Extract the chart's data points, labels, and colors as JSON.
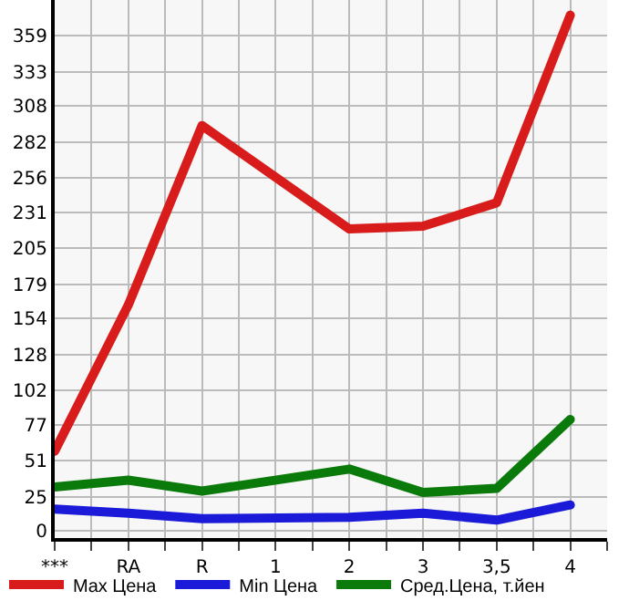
{
  "chart_data": {
    "type": "line",
    "categories": [
      "***",
      "RA",
      "R",
      "1",
      "2",
      "3",
      "3,5",
      "4"
    ],
    "series": [
      {
        "name": "Max Цена",
        "color": "#d81c1c",
        "values": [
          58,
          164,
          294,
          null,
          219,
          221,
          238,
          374
        ]
      },
      {
        "name": "Min Цена",
        "color": "#1a1ad8",
        "values": [
          16,
          13,
          9,
          null,
          10,
          13,
          8,
          19
        ]
      },
      {
        "name": "Сред.Цена, т.йен",
        "color": "#0a7a0a",
        "values": [
          32,
          37,
          29,
          null,
          45,
          28,
          31,
          81
        ]
      }
    ],
    "ylim": [
      -5,
      385
    ],
    "yticks": [
      0,
      25,
      51,
      77,
      102,
      128,
      154,
      179,
      205,
      231,
      256,
      282,
      308,
      333,
      359
    ],
    "grid": true,
    "legend": "bottom",
    "marker": "none",
    "line_style": "solid"
  }
}
